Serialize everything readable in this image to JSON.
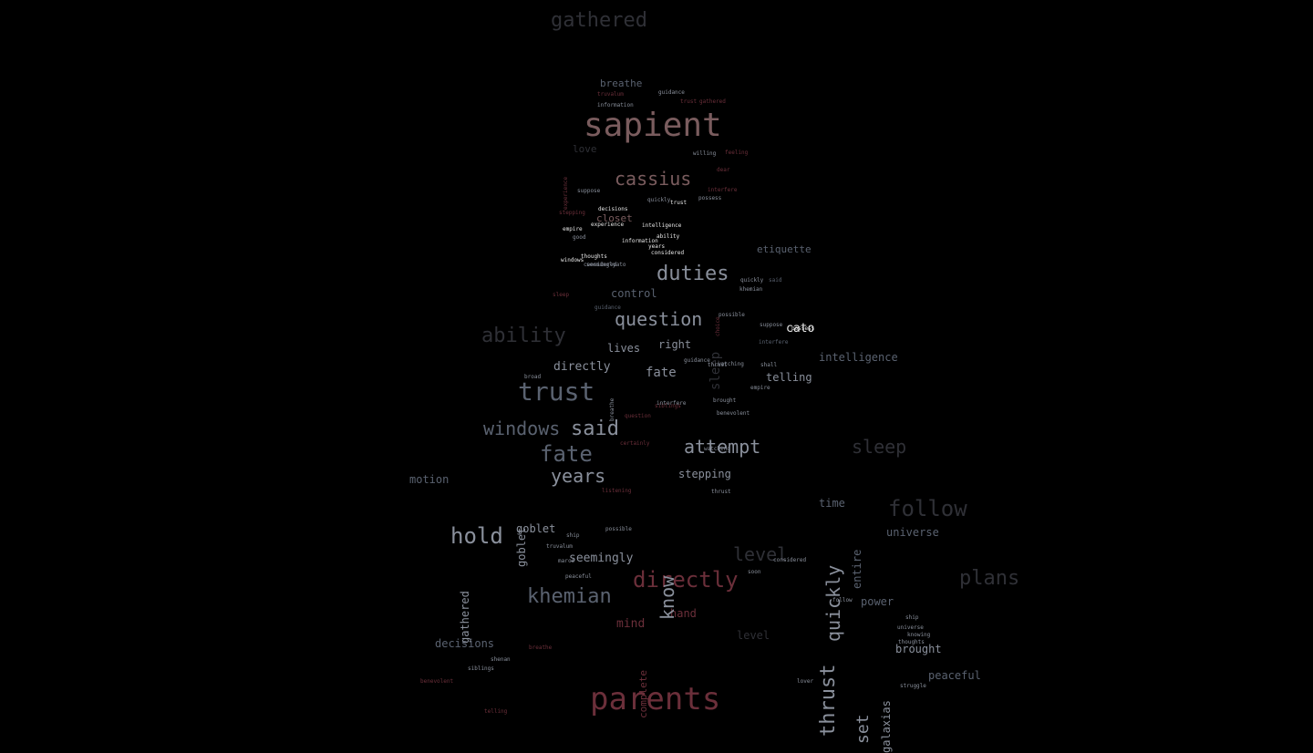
{
  "palette": {
    "background": "#000000",
    "rose": "#7a5c5e",
    "slate": "#5a6270",
    "slate_light": "#8a909c",
    "maroon": "#6b2f3a",
    "dim": "#2f3036",
    "white": "#e8e8e8"
  },
  "words": [
    {
      "t": "gathered",
      "c": "dim"
    },
    {
      "t": "sapient",
      "c": "rose"
    },
    {
      "t": "cassius",
      "c": "rose"
    },
    {
      "t": "breathe",
      "c": "slate"
    },
    {
      "t": "closet",
      "c": "rose"
    },
    {
      "t": "love",
      "c": "dim"
    },
    {
      "t": "duties",
      "c": "slate_light"
    },
    {
      "t": "etiquette",
      "c": "slate"
    },
    {
      "t": "control",
      "c": "slate"
    },
    {
      "t": "question",
      "c": "slate_light"
    },
    {
      "t": "ability",
      "c": "dim"
    },
    {
      "t": "cato",
      "c": "white"
    },
    {
      "t": "lives",
      "c": "slate_light"
    },
    {
      "t": "right",
      "c": "slate_light"
    },
    {
      "t": "intelligence",
      "c": "slate"
    },
    {
      "t": "directly",
      "c": "slate_light"
    },
    {
      "t": "fate",
      "c": "slate_light"
    },
    {
      "t": "telling",
      "c": "slate_light"
    },
    {
      "t": "trust",
      "c": "slate"
    },
    {
      "t": "windows",
      "c": "slate"
    },
    {
      "t": "said",
      "c": "slate_light"
    },
    {
      "t": "fate",
      "c": "slate"
    },
    {
      "t": "attempt",
      "c": "slate_light"
    },
    {
      "t": "sleep",
      "c": "dim"
    },
    {
      "t": "years",
      "c": "slate_light"
    },
    {
      "t": "motion",
      "c": "slate"
    },
    {
      "t": "stepping",
      "c": "slate_light"
    },
    {
      "t": "time",
      "c": "slate"
    },
    {
      "t": "follow",
      "c": "dim"
    },
    {
      "t": "hold",
      "c": "slate_light"
    },
    {
      "t": "goblet",
      "c": "slate_light"
    },
    {
      "t": "universe",
      "c": "slate"
    },
    {
      "t": "level",
      "c": "dim"
    },
    {
      "t": "seemingly",
      "c": "slate_light"
    },
    {
      "t": "directly",
      "c": "maroon"
    },
    {
      "t": "khemian",
      "c": "slate"
    },
    {
      "t": "power",
      "c": "slate"
    },
    {
      "t": "hand",
      "c": "maroon"
    },
    {
      "t": "mind",
      "c": "maroon"
    },
    {
      "t": "level",
      "c": "dim"
    },
    {
      "t": "decisions",
      "c": "slate"
    },
    {
      "t": "brought",
      "c": "slate_light"
    },
    {
      "t": "peaceful",
      "c": "slate"
    },
    {
      "t": "parents",
      "c": "maroon"
    },
    {
      "t": "plans",
      "c": "dim"
    },
    {
      "t": "know",
      "c": "slate_light"
    },
    {
      "t": "quickly",
      "c": "slate_light"
    },
    {
      "t": "thrust",
      "c": "slate_light"
    },
    {
      "t": "set",
      "c": "slate_light"
    },
    {
      "t": "gathered",
      "c": "slate_light"
    },
    {
      "t": "complete",
      "c": "maroon"
    },
    {
      "t": "galaxias",
      "c": "slate_light"
    },
    {
      "t": "entire",
      "c": "slate"
    },
    {
      "t": "sleep",
      "c": "dim"
    },
    {
      "t": "goblet",
      "c": "slate_light"
    },
    {
      "t": "guidance",
      "c": "slate_light"
    },
    {
      "t": "truvalum",
      "c": "maroon"
    },
    {
      "t": "information",
      "c": "slate_light"
    },
    {
      "t": "trust",
      "c": "maroon"
    },
    {
      "t": "gathered",
      "c": "maroon"
    },
    {
      "t": "willing",
      "c": "slate_light"
    },
    {
      "t": "feeling",
      "c": "maroon"
    },
    {
      "t": "dear",
      "c": "maroon"
    },
    {
      "t": "experience",
      "c": "maroon"
    },
    {
      "t": "suppose",
      "c": "slate_light"
    },
    {
      "t": "quickly",
      "c": "slate_light"
    },
    {
      "t": "trust",
      "c": "white"
    },
    {
      "t": "possess",
      "c": "slate_light"
    },
    {
      "t": "interfere",
      "c": "maroon"
    },
    {
      "t": "stepping",
      "c": "maroon"
    },
    {
      "t": "decisions",
      "c": "white"
    },
    {
      "t": "experience",
      "c": "white"
    },
    {
      "t": "empire",
      "c": "white"
    },
    {
      "t": "good",
      "c": "slate_light"
    },
    {
      "t": "intelligence",
      "c": "white"
    },
    {
      "t": "information",
      "c": "white"
    },
    {
      "t": "ability",
      "c": "white"
    },
    {
      "t": "years",
      "c": "white"
    },
    {
      "t": "considered",
      "c": "white"
    },
    {
      "t": "windows",
      "c": "white"
    },
    {
      "t": "seemingly",
      "c": "slate_light"
    },
    {
      "t": "thoughts",
      "c": "white"
    },
    {
      "t": "considered",
      "c": "slate_light"
    },
    {
      "t": "cato",
      "c": "slate_light"
    },
    {
      "t": "quickly",
      "c": "slate_light"
    },
    {
      "t": "said",
      "c": "slate"
    },
    {
      "t": "khemian",
      "c": "slate_light"
    },
    {
      "t": "choice",
      "c": "maroon"
    },
    {
      "t": "sleep",
      "c": "maroon"
    },
    {
      "t": "guidance",
      "c": "slate"
    },
    {
      "t": "possible",
      "c": "slate_light"
    },
    {
      "t": "suppose",
      "c": "slate_light"
    },
    {
      "t": "possess",
      "c": "white"
    },
    {
      "t": "interfere",
      "c": "slate"
    },
    {
      "t": "thrust",
      "c": "slate_light"
    },
    {
      "t": "guidance",
      "c": "slate_light"
    },
    {
      "t": "watching",
      "c": "slate_light"
    },
    {
      "t": "shall",
      "c": "slate_light"
    },
    {
      "t": "empire",
      "c": "slate_light"
    },
    {
      "t": "broad",
      "c": "slate_light"
    },
    {
      "t": "breathe",
      "c": "slate_light"
    },
    {
      "t": "siblings",
      "c": "maroon"
    },
    {
      "t": "question",
      "c": "maroon"
    },
    {
      "t": "certainly",
      "c": "maroon"
    },
    {
      "t": "interfere",
      "c": "slate_light"
    },
    {
      "t": "brought",
      "c": "slate_light"
    },
    {
      "t": "benevolent",
      "c": "slate_light"
    },
    {
      "t": "watching",
      "c": "slate_light"
    },
    {
      "t": "listening",
      "c": "maroon"
    },
    {
      "t": "thrust",
      "c": "slate_light"
    },
    {
      "t": "possible",
      "c": "slate_light"
    },
    {
      "t": "ship",
      "c": "slate_light"
    },
    {
      "t": "truvalum",
      "c": "slate_light"
    },
    {
      "t": "marco",
      "c": "slate_light"
    },
    {
      "t": "peaceful",
      "c": "slate_light"
    },
    {
      "t": "considered",
      "c": "slate_light"
    },
    {
      "t": "soon",
      "c": "slate_light"
    },
    {
      "t": "follow",
      "c": "slate_light"
    },
    {
      "t": "universe",
      "c": "slate_light"
    },
    {
      "t": "ship",
      "c": "slate_light"
    },
    {
      "t": "knowing",
      "c": "slate_light"
    },
    {
      "t": "thoughts",
      "c": "slate_light"
    },
    {
      "t": "struggle",
      "c": "slate_light"
    },
    {
      "t": "lover",
      "c": "slate_light"
    },
    {
      "t": "shenan",
      "c": "slate_light"
    },
    {
      "t": "siblings",
      "c": "slate_light"
    },
    {
      "t": "breathe",
      "c": "maroon"
    },
    {
      "t": "benevolent",
      "c": "maroon"
    },
    {
      "t": "telling",
      "c": "maroon"
    }
  ]
}
